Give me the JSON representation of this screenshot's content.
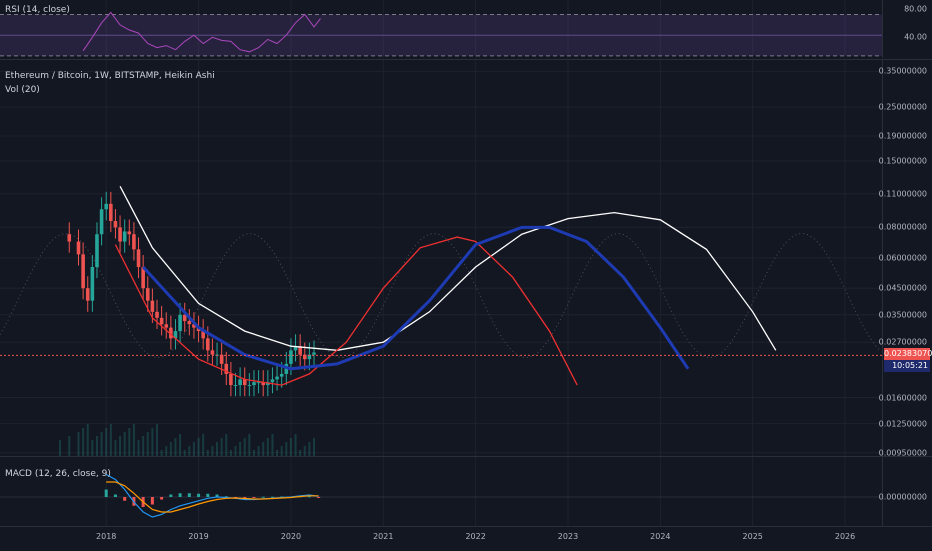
{
  "chart_data": [
    {
      "type": "line",
      "indicator": "rsi",
      "title": "RSI (14, close)",
      "y_ticks": [
        "80.00",
        "40.00"
      ],
      "y_tick_values": [
        80,
        40
      ],
      "ylim": [
        28,
        84
      ],
      "band": [
        30,
        70
      ],
      "x": [
        2017.75,
        2017.85,
        2017.95,
        2018.05,
        2018.15,
        2018.25,
        2018.35,
        2018.45,
        2018.55,
        2018.65,
        2018.75,
        2018.85,
        2018.95,
        2019.05,
        2019.15,
        2019.25,
        2019.35,
        2019.45,
        2019.55,
        2019.65,
        2019.75,
        2019.85,
        2019.95,
        2020.05,
        2020.15,
        2020.25,
        2020.32
      ],
      "values": [
        35,
        48,
        62,
        72,
        60,
        55,
        52,
        42,
        38,
        40,
        36,
        44,
        50,
        42,
        48,
        45,
        44,
        36,
        34,
        38,
        46,
        42,
        50,
        62,
        70,
        58,
        66
      ],
      "color": "#ab47bc"
    },
    {
      "type": "line",
      "title": "Ethereum / Bitcoin, 1W, BITSTAMP, Heikin Ashi",
      "subtitle": "Vol (20)",
      "x_ticks": [
        "2018",
        "2019",
        "2020",
        "2021",
        "2022",
        "2023",
        "2024",
        "2025",
        "2026"
      ],
      "x_tick_values": [
        2018,
        2019,
        2020,
        2021,
        2022,
        2023,
        2024,
        2025,
        2026
      ],
      "xlim": [
        2016.85,
        2026.4
      ],
      "y_scale": "log",
      "ylim": [
        0.0092,
        0.39
      ],
      "y_ticks": [
        "0.35000000",
        "0.25000000",
        "0.19000000",
        "0.15000000",
        "0.11000000",
        "0.08000000",
        "0.06000000",
        "0.04500000",
        "0.03500000",
        "0.02700000",
        "0.01600000",
        "0.01250000",
        "0.00950000"
      ],
      "y_tick_values": [
        0.35,
        0.25,
        0.19,
        0.15,
        0.11,
        0.08,
        0.06,
        0.045,
        0.035,
        0.027,
        0.016,
        0.0125,
        0.0095
      ],
      "last_price": "0.02383070",
      "last_price_value": 0.02383,
      "countdown": "10:05:21",
      "price_line_color": "#ef5350",
      "series": [
        {
          "kind": "price",
          "x": [
            2017.5,
            2017.6,
            2017.7,
            2017.75,
            2017.8,
            2017.85,
            2017.9,
            2017.95,
            2018.0,
            2018.05,
            2018.1,
            2018.15,
            2018.2,
            2018.25,
            2018.3,
            2018.35,
            2018.4,
            2018.45,
            2018.5,
            2018.55,
            2018.6,
            2018.65,
            2018.7,
            2018.75,
            2018.8,
            2018.85,
            2018.9,
            2018.95,
            2019.0,
            2019.05,
            2019.1,
            2019.15,
            2019.2,
            2019.25,
            2019.3,
            2019.35,
            2019.4,
            2019.45,
            2019.5,
            2019.55,
            2019.6,
            2019.65,
            2019.7,
            2019.75,
            2019.8,
            2019.85,
            2019.9,
            2019.95,
            2020.0,
            2020.05,
            2020.1,
            2020.15,
            2020.2,
            2020.25
          ],
          "y": [
            0.075,
            0.07,
            0.062,
            0.045,
            0.04,
            0.055,
            0.075,
            0.095,
            0.1,
            0.085,
            0.08,
            0.07,
            0.077,
            0.075,
            0.065,
            0.055,
            0.045,
            0.04,
            0.036,
            0.034,
            0.032,
            0.031,
            0.028,
            0.03,
            0.035,
            0.033,
            0.032,
            0.031,
            0.03,
            0.028,
            0.025,
            0.024,
            0.024,
            0.022,
            0.02,
            0.018,
            0.018,
            0.019,
            0.018,
            0.018,
            0.0185,
            0.0185,
            0.018,
            0.0185,
            0.019,
            0.0195,
            0.02,
            0.022,
            0.025,
            0.026,
            0.024,
            0.023,
            0.024,
            0.0245
          ]
        },
        {
          "kind": "curve",
          "color": "#ffffff",
          "x": [
            2018.15,
            2018.5,
            2019.0,
            2019.5,
            2020.0,
            2020.5,
            2021.0,
            2021.5,
            2022.0,
            2022.5,
            2023.0,
            2023.5,
            2024.0,
            2024.5,
            2025.0,
            2025.25
          ],
          "y": [
            0.118,
            0.066,
            0.039,
            0.03,
            0.026,
            0.025,
            0.027,
            0.036,
            0.055,
            0.075,
            0.087,
            0.092,
            0.086,
            0.065,
            0.036,
            0.025
          ]
        },
        {
          "kind": "curve",
          "color": "#ef3030",
          "x": [
            2018.1,
            2018.5,
            2019.0,
            2019.5,
            2019.9,
            2020.2,
            2020.6,
            2021.0,
            2021.4,
            2021.8,
            2022.0,
            2022.4,
            2022.8,
            2023.1
          ],
          "y": [
            0.068,
            0.034,
            0.023,
            0.019,
            0.018,
            0.02,
            0.027,
            0.045,
            0.066,
            0.073,
            0.07,
            0.05,
            0.03,
            0.018
          ]
        },
        {
          "kind": "curve",
          "color": "#1e3bb3",
          "x": [
            2018.4,
            2019.0,
            2019.5,
            2020.0,
            2020.5,
            2021.0,
            2021.5,
            2022.0,
            2022.5,
            2022.8,
            2023.2,
            2023.6,
            2024.0,
            2024.3
          ],
          "y": [
            0.055,
            0.031,
            0.024,
            0.021,
            0.022,
            0.026,
            0.04,
            0.068,
            0.08,
            0.08,
            0.07,
            0.05,
            0.031,
            0.021
          ]
        }
      ]
    },
    {
      "type": "line",
      "indicator": "macd",
      "title": "MACD (12, 26, close, 9)",
      "y_ticks": [
        "0.00000000"
      ],
      "y_tick_values": [
        0
      ],
      "ylim": [
        -1.0,
        0.9
      ],
      "x": [
        2018.0,
        2018.1,
        2018.2,
        2018.3,
        2018.4,
        2018.5,
        2018.6,
        2018.7,
        2018.8,
        2018.9,
        2019.0,
        2019.1,
        2019.2,
        2019.3,
        2019.4,
        2019.5,
        2019.6,
        2019.7,
        2019.8,
        2019.9,
        2020.0,
        2020.1,
        2020.2,
        2020.3
      ],
      "macd": [
        0.9,
        0.7,
        0.3,
        -0.2,
        -0.6,
        -0.8,
        -0.7,
        -0.5,
        -0.35,
        -0.25,
        -0.15,
        -0.05,
        0.0,
        -0.02,
        -0.05,
        -0.1,
        -0.1,
        -0.07,
        -0.05,
        -0.02,
        0.0,
        0.05,
        0.08,
        0.03
      ],
      "signal": [
        0.6,
        0.6,
        0.45,
        0.15,
        -0.2,
        -0.5,
        -0.6,
        -0.6,
        -0.5,
        -0.4,
        -0.28,
        -0.18,
        -0.1,
        -0.05,
        -0.04,
        -0.06,
        -0.08,
        -0.08,
        -0.06,
        -0.04,
        -0.02,
        0.02,
        0.05,
        0.05
      ],
      "macd_color": "#2196f3",
      "signal_color": "#ff9800"
    }
  ]
}
